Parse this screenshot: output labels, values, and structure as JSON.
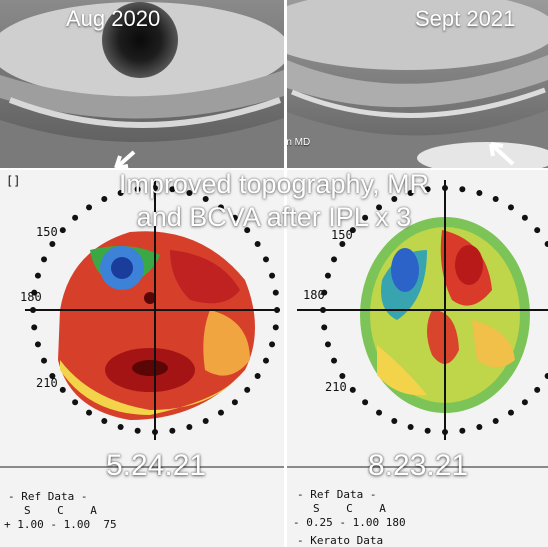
{
  "photos": {
    "left_label": "Aug 2020",
    "right_label": "Sept 2021",
    "credit": "LM Periman MD"
  },
  "caption": {
    "line1": "Improved topography, MR",
    "line2": "and BCVA after IPL x 3"
  },
  "maps": {
    "left": {
      "marker": "[]",
      "axis_150": "150",
      "axis_180": "180",
      "axis_210": "210",
      "date": "5.24.21",
      "ref_header": "- Ref Data -",
      "ref_cols": "S    C    A",
      "ref_values": "+ 1.00 - 1.00  75"
    },
    "right": {
      "axis_150": "150",
      "axis_180": "180",
      "axis_210": "210",
      "date": "8.23.21",
      "ref_header": "- Ref Data -",
      "ref_cols": "S    C    A",
      "ref_values": "- 0.25 - 1.00 180",
      "keratometry_partial": "- Kerato Data"
    }
  },
  "colors": {
    "hot": "#d81e1e",
    "warm": "#f5a623",
    "neutral": "#f2e234",
    "cool": "#4caf50",
    "cold": "#1e63c8"
  }
}
